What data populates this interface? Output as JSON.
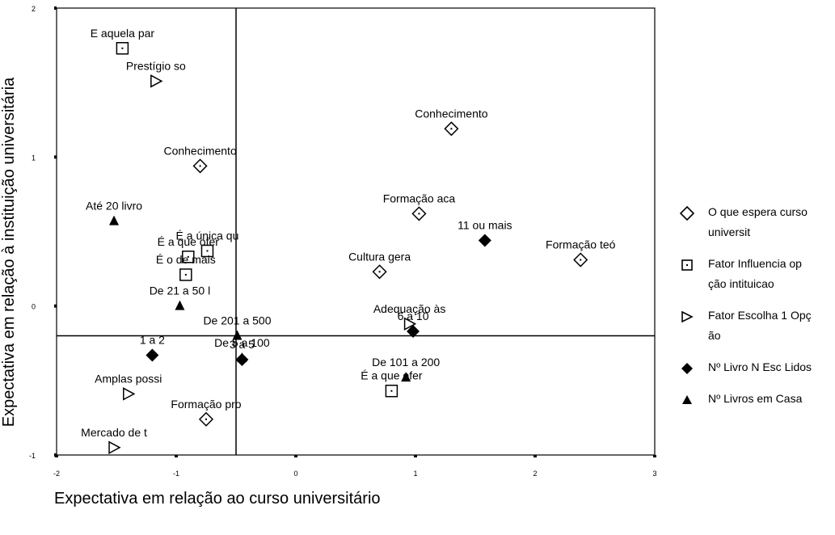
{
  "chart_data": {
    "type": "scatter",
    "title": "",
    "xlabel": "Expectativa em relação ao curso universitário",
    "ylabel": "Expectativa em relação à instituição universitária",
    "xlim": [
      -2,
      3
    ],
    "ylim": [
      -1,
      2
    ],
    "x_ticks": [
      "-2",
      "-1",
      "0",
      "1",
      "2",
      "3"
    ],
    "y_ticks": [
      "-1",
      "0",
      "1",
      "2"
    ],
    "reference_lines": {
      "x": -0.5,
      "y": -0.2
    },
    "grid": false,
    "legend_position": "right",
    "series": [
      {
        "name": "O que espera curso universit",
        "marker": "diamond-open",
        "points": [
          {
            "label": "Conhecimento",
            "x": 1.3,
            "y": 1.19
          },
          {
            "label": "Conhecimento",
            "x": -0.8,
            "y": 0.94
          },
          {
            "label": "Formação aca",
            "x": 1.03,
            "y": 0.62
          },
          {
            "label": "Formação teó",
            "x": 2.38,
            "y": 0.31
          },
          {
            "label": "Cultura gera",
            "x": 0.7,
            "y": 0.23
          },
          {
            "label": "Formação pro",
            "x": -0.75,
            "y": -0.76
          }
        ]
      },
      {
        "name": "Fator Influencia opção intituicao",
        "marker": "square-open",
        "points": [
          {
            "label": "E aquela par",
            "x": -1.45,
            "y": 1.73
          },
          {
            "label": "É a única qu",
            "x": -0.74,
            "y": 0.37
          },
          {
            "label": "É a que ofer",
            "x": -0.9,
            "y": 0.33
          },
          {
            "label": "É o de mais",
            "x": -0.92,
            "y": 0.21
          },
          {
            "label": "É a que ofer",
            "x": 0.8,
            "y": -0.57
          }
        ]
      },
      {
        "name": "Fator Escolha 1 Opção",
        "marker": "triangle-right-open",
        "points": [
          {
            "label": "Prestígio so",
            "x": -1.17,
            "y": 1.51
          },
          {
            "label": "Adequação às",
            "x": 0.95,
            "y": -0.12
          },
          {
            "label": "Amplas possi",
            "x": -1.4,
            "y": -0.59
          },
          {
            "label": "Mercado de t",
            "x": -1.52,
            "y": -0.95
          }
        ]
      },
      {
        "name": "Nº Livro N Esc Lidos",
        "marker": "diamond-filled",
        "points": [
          {
            "label": "11 ou mais",
            "x": 1.58,
            "y": 0.44
          },
          {
            "label": "6 a 10",
            "x": 0.98,
            "y": -0.17
          },
          {
            "label": "1 a 2",
            "x": -1.2,
            "y": -0.33
          },
          {
            "label": "3 a 5",
            "x": -0.45,
            "y": -0.36
          }
        ]
      },
      {
        "name": "Nº Livros em Casa",
        "marker": "triangle-filled",
        "points": [
          {
            "label": "Até 20 livro",
            "x": -1.52,
            "y": 0.57
          },
          {
            "label": "De 21 a 50 l",
            "x": -0.97,
            "y": 0.0
          },
          {
            "label": "De 201 a 500",
            "x": -0.49,
            "y": -0.2
          },
          {
            "label": "De 5 a 100",
            "x": -0.45,
            "y": -0.35
          },
          {
            "label": "De 101 a 200",
            "x": 0.92,
            "y": -0.48
          }
        ]
      }
    ]
  },
  "legend": {
    "items": [
      {
        "line1": "O que espera curso",
        "line2": "universit",
        "marker": "diamond-open"
      },
      {
        "line1": "Fator Influencia op",
        "line2": "ção intituicao",
        "marker": "square-open"
      },
      {
        "line1": "Fator Escolha 1 Opç",
        "line2": "ão",
        "marker": "triangle-right-open"
      },
      {
        "line1": "Nº Livro N Esc Lidos",
        "line2": "",
        "marker": "diamond-filled"
      },
      {
        "line1": "Nº Livros em Casa",
        "line2": "",
        "marker": "triangle-filled"
      }
    ]
  }
}
